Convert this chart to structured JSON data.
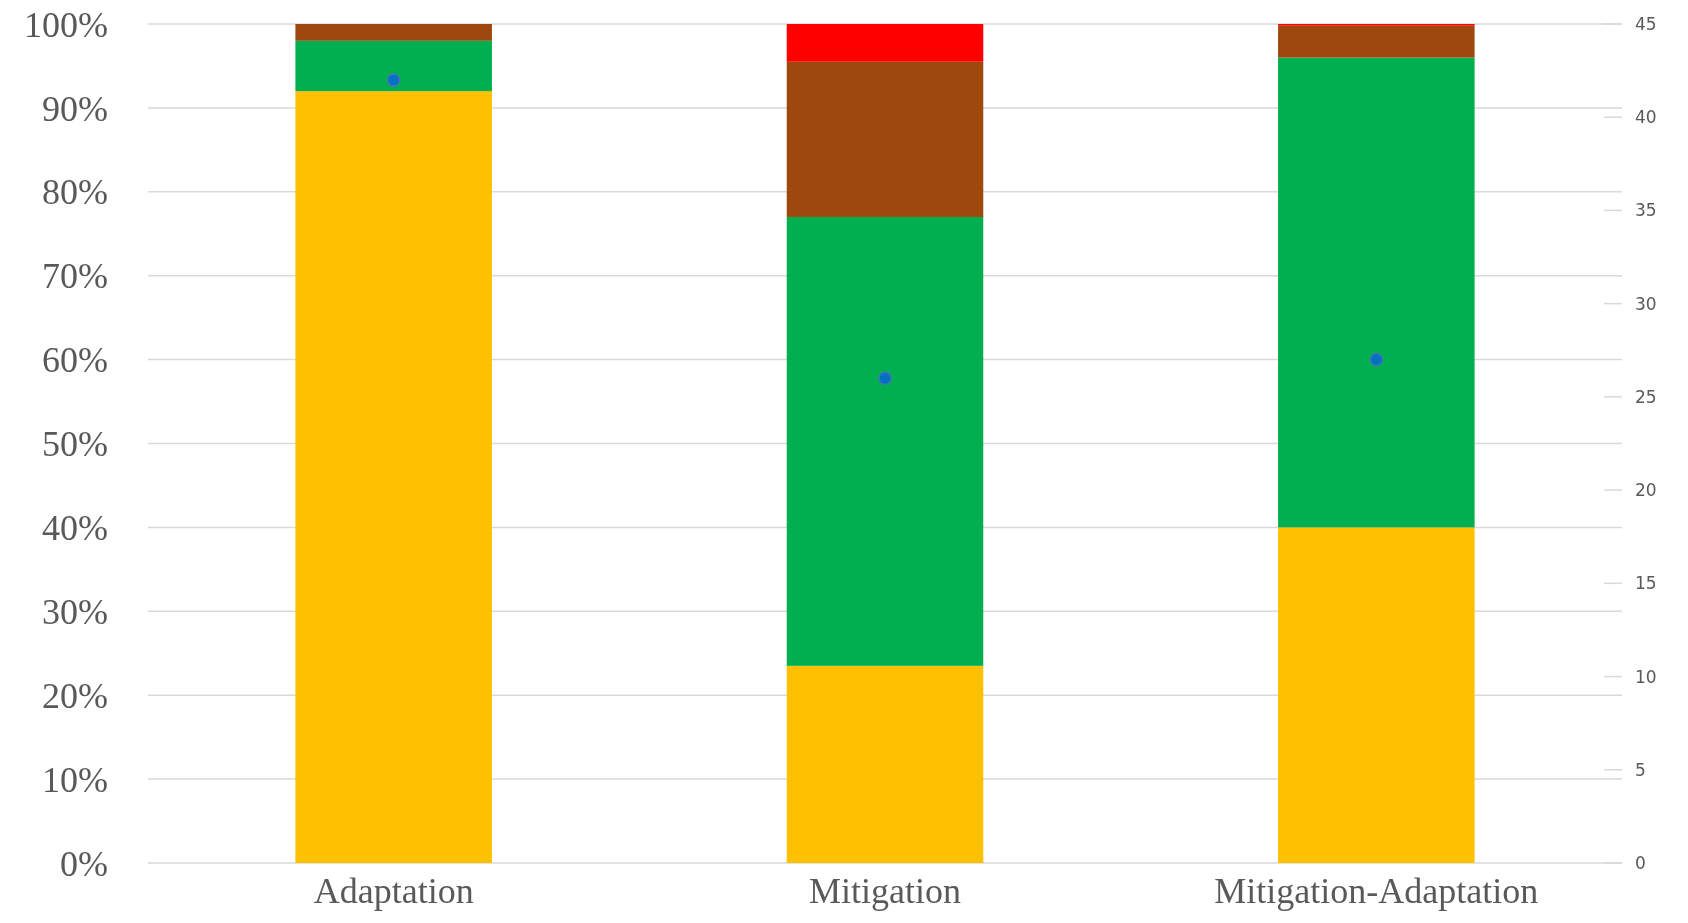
{
  "chart_data": {
    "type": "bar",
    "stacked": true,
    "categories": [
      "Adaptation",
      "Mitigation",
      "Mitigation-Adaptation"
    ],
    "series": [
      {
        "color": "#ffc000",
        "values": [
          92,
          23.5,
          40
        ]
      },
      {
        "color": "#00b050",
        "values": [
          6,
          53.5,
          56
        ]
      },
      {
        "color": "#9e480e",
        "values": [
          2,
          18.5,
          3.8
        ]
      },
      {
        "color": "#ff0000",
        "values": [
          0,
          4.5,
          0.2
        ]
      },
      {
        "type": "scatter",
        "axis": "y2",
        "color": "#0070c0",
        "x": [
          "Adaptation",
          "Mitigation",
          "Mitigation-Adaptation"
        ],
        "values": [
          42,
          26,
          27
        ]
      }
    ],
    "ylim": [
      0,
      100
    ],
    "yticks": [
      {
        "value": 0,
        "label": "0%"
      },
      {
        "value": 10,
        "label": "10%"
      },
      {
        "value": 20,
        "label": "20%"
      },
      {
        "value": 30,
        "label": "30%"
      },
      {
        "value": 40,
        "label": "40%"
      },
      {
        "value": 50,
        "label": "50%"
      },
      {
        "value": 60,
        "label": "60%"
      },
      {
        "value": 70,
        "label": "70%"
      },
      {
        "value": 80,
        "label": "80%"
      },
      {
        "value": 90,
        "label": "90%"
      },
      {
        "value": 100,
        "label": "100%"
      }
    ],
    "y2lim": [
      0,
      45
    ],
    "y2ticks": [
      0,
      5,
      10,
      15,
      20,
      25,
      30,
      35,
      40,
      45
    ],
    "grid": "y",
    "marker": "circle"
  }
}
